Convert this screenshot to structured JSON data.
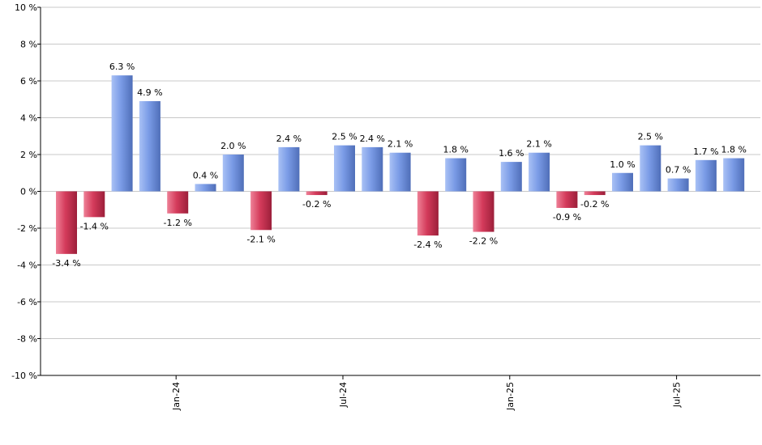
{
  "chart_data": {
    "type": "bar",
    "title": "",
    "xlabel": "",
    "ylabel": "",
    "ylim": [
      -10,
      10
    ],
    "y_ticks": [
      -10,
      -8,
      -6,
      -4,
      -2,
      0,
      2,
      4,
      6,
      8,
      10
    ],
    "y_tick_labels": [
      "-10 %",
      "-8 %",
      "-6 %",
      "-4 %",
      "-2 %",
      "0 %",
      "2 %",
      "4 %",
      "6 %",
      "8 %",
      "10 %"
    ],
    "grid": true,
    "values": [
      -3.4,
      -1.4,
      6.3,
      4.9,
      -1.2,
      0.4,
      2.0,
      -2.1,
      2.4,
      -0.2,
      2.5,
      2.4,
      2.1,
      -2.4,
      1.8,
      -2.2,
      1.6,
      2.1,
      -0.9,
      -0.2,
      1.0,
      2.5,
      0.7,
      1.7,
      1.8
    ],
    "value_labels": [
      "-3.4 %",
      "-1.4 %",
      "6.3 %",
      "4.9 %",
      "-1.2 %",
      "0.4 %",
      "2.0 %",
      "-2.1 %",
      "2.4 %",
      "-0.2 %",
      "2.5 %",
      "2.4 %",
      "2.1 %",
      "-2.4 %",
      "1.8 %",
      "-2.2 %",
      "1.6 %",
      "2.1 %",
      "-0.9 %",
      "-0.2 %",
      "1.0 %",
      "2.5 %",
      "0.7 %",
      "1.7 %",
      "1.8 %"
    ],
    "x_ticks": [
      {
        "label": "Jan-24",
        "index": 4
      },
      {
        "label": "Jul-24",
        "index": 10
      },
      {
        "label": "Jan-25",
        "index": 16
      },
      {
        "label": "Jul-25",
        "index": 22
      }
    ],
    "colors": {
      "positive": "#7a9be6",
      "positive_light": "#a9c1f5",
      "positive_dark": "#4f6eb8",
      "negative": "#d43b5b",
      "negative_light": "#ee8197",
      "negative_dark": "#9c1f3a",
      "grid": "#c8c8c8",
      "axis": "#000000"
    }
  }
}
